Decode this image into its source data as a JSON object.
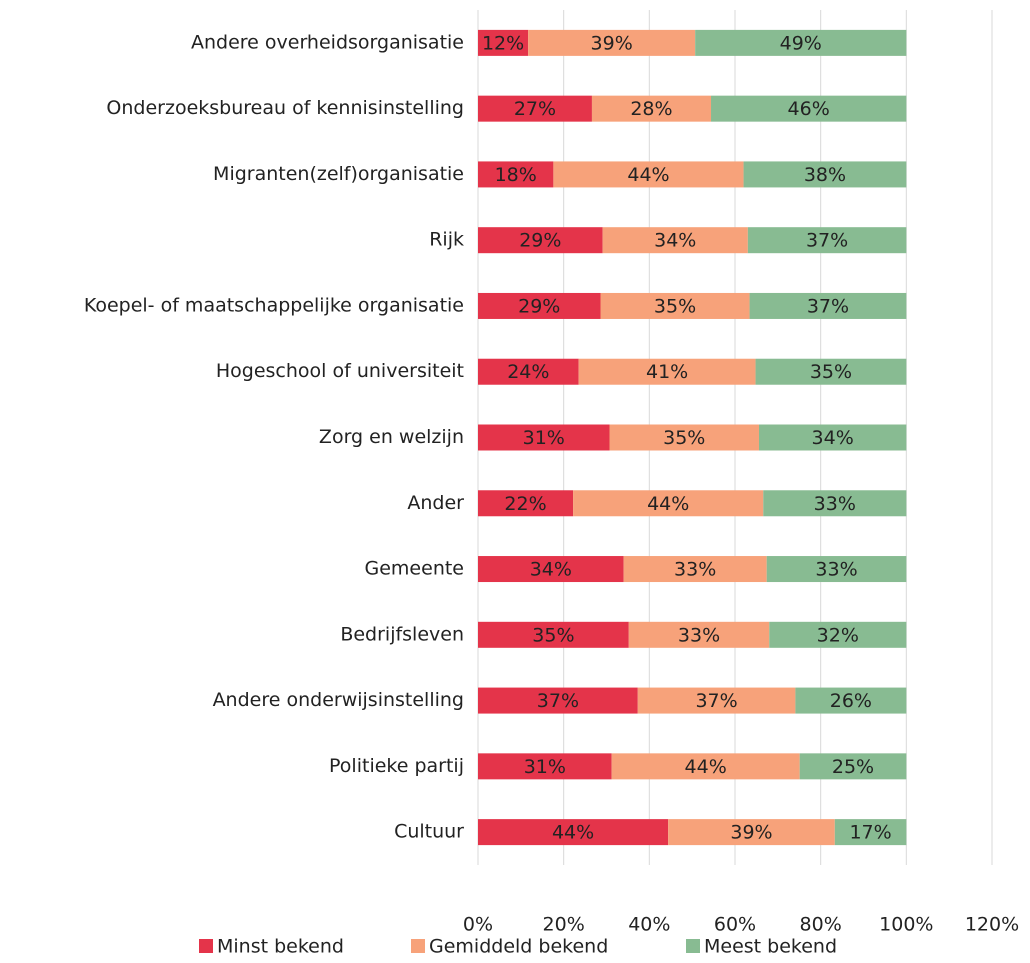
{
  "chart_data": {
    "type": "stacked_barh",
    "categories": [
      "Andere overheidsorganisatie",
      "Onderzoeksbureau of kennisinstelling",
      "Migranten(zelf)organisatie",
      "Rijk",
      "Koepel- of maatschappelijke organisatie",
      "Hogeschool of universiteit",
      "Zorg en welzijn",
      "Ander",
      "Gemeente",
      "Bedrijfsleven",
      "Andere onderwijsinstelling",
      "Politieke partij",
      "Cultuur"
    ],
    "series": [
      {
        "name": "Minst bekend",
        "color": "#e4344a",
        "values": [
          11.7,
          26.6,
          17.6,
          29.1,
          28.6,
          23.5,
          30.7,
          22.2,
          34.0,
          35.2,
          37.3,
          31.2,
          44.4
        ],
        "value_labels": [
          "12%",
          "27%",
          "18%",
          "29%",
          "29%",
          "24%",
          "31%",
          "22%",
          "34%",
          "35%",
          "37%",
          "31%",
          "44%"
        ]
      },
      {
        "name": "Gemiddeld bekend",
        "color": "#f7a27a",
        "values": [
          39.0,
          27.8,
          44.4,
          33.9,
          34.8,
          41.3,
          34.9,
          44.4,
          33.4,
          32.8,
          36.8,
          43.9,
          38.9
        ],
        "value_labels": [
          "39%",
          "28%",
          "44%",
          "34%",
          "35%",
          "41%",
          "35%",
          "44%",
          "33%",
          "33%",
          "37%",
          "44%",
          "39%"
        ]
      },
      {
        "name": "Meest bekend",
        "color": "#88bb92",
        "values": [
          49.3,
          45.6,
          38.0,
          37.0,
          36.6,
          35.2,
          34.4,
          33.4,
          32.6,
          32.0,
          25.9,
          24.9,
          16.7
        ],
        "value_labels": [
          "49%",
          "46%",
          "38%",
          "37%",
          "37%",
          "35%",
          "34%",
          "33%",
          "33%",
          "32%",
          "26%",
          "25%",
          "17%"
        ]
      }
    ],
    "xlim": [
      0,
      120
    ],
    "xticks": [
      {
        "value": 0,
        "label": "0%"
      },
      {
        "value": 20,
        "label": "20%"
      },
      {
        "value": 40,
        "label": "40%"
      },
      {
        "value": 60,
        "label": "60%"
      },
      {
        "value": 80,
        "label": "80%"
      },
      {
        "value": 100,
        "label": "100%"
      },
      {
        "value": 120,
        "label": "120%"
      }
    ],
    "grid": true,
    "legend": "bottom"
  }
}
